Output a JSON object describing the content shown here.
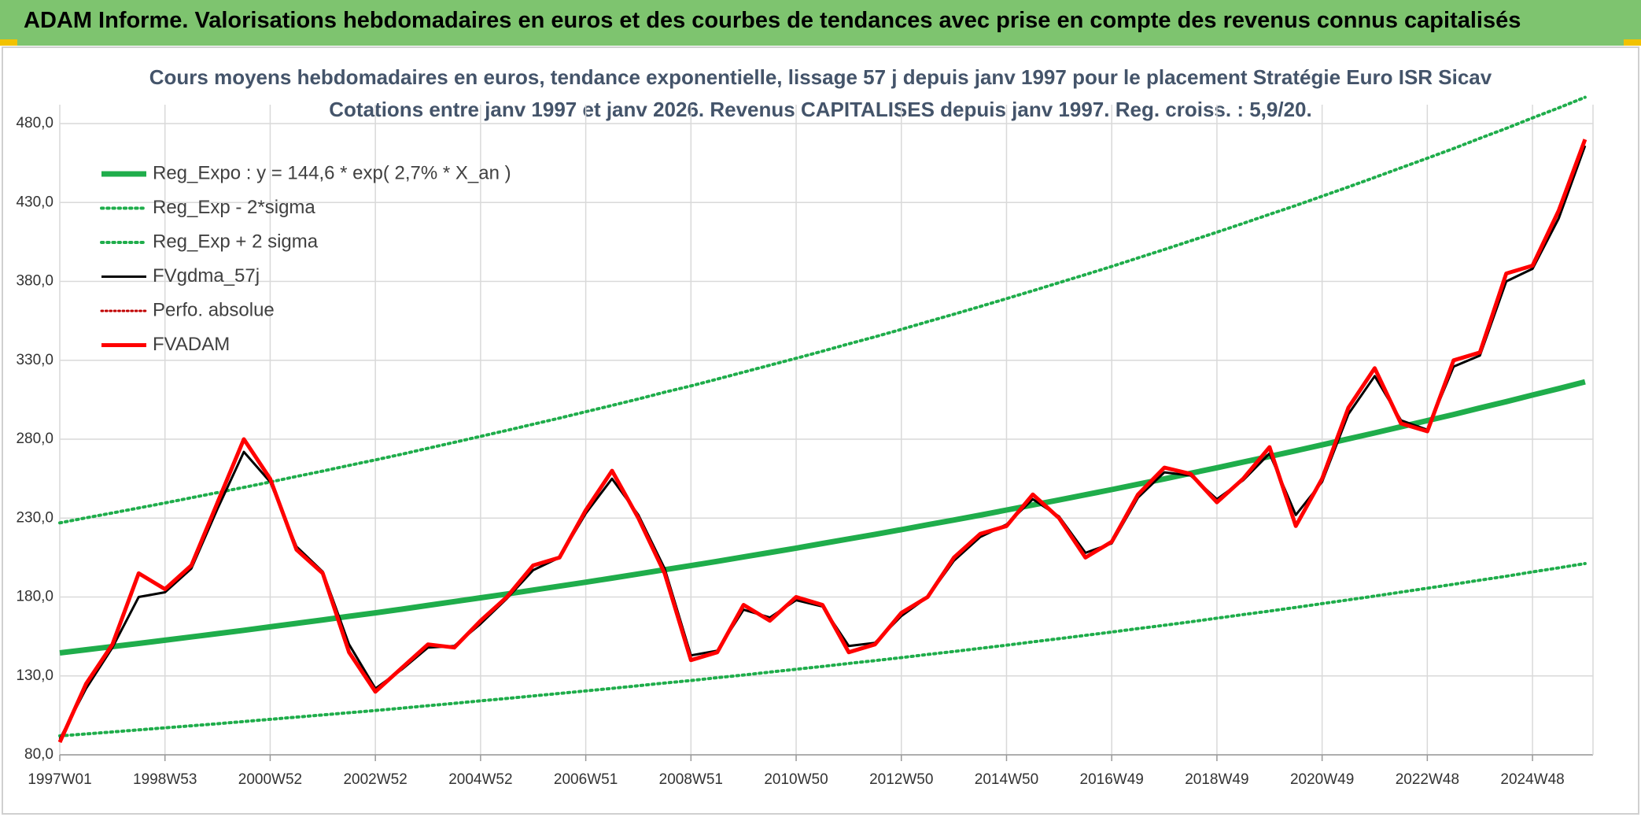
{
  "header": {
    "title": "ADAM Informe. Valorisations hebdomadaires en euros et des courbes de tendances avec prise en compte des revenus connus capitalisés"
  },
  "chart_data": {
    "type": "line",
    "title": "Cours moyens hebdomadaires en euros, tendance exponentielle, lissage 57 j depuis janv 1997 pour le placement Stratégie Euro ISR Sicav",
    "subtitle": "Cotations entre janv 1997 et janv 2026. Revenus CAPITALISES depuis janv 1997. Reg. croiss. : 5,9/20.",
    "categories": [
      "1997W01",
      null,
      null,
      null,
      "1998W53",
      null,
      null,
      null,
      "2000W52",
      null,
      null,
      null,
      "2002W52",
      null,
      null,
      null,
      "2004W52",
      null,
      null,
      null,
      "2006W51",
      null,
      null,
      null,
      "2008W51",
      null,
      null,
      null,
      "2010W50",
      null,
      null,
      null,
      "2012W50",
      null,
      null,
      null,
      "2014W50",
      null,
      null,
      null,
      "2016W49",
      null,
      null,
      null,
      "2018W49",
      null,
      null,
      null,
      "2020W49",
      null,
      null,
      null,
      "2022W48",
      null,
      null,
      null,
      "2024W48",
      null,
      null
    ],
    "ylim": [
      80,
      492
    ],
    "yticks": [
      {
        "value": 80,
        "label": "80,0"
      },
      {
        "value": 130,
        "label": "130,0"
      },
      {
        "value": 180,
        "label": "180,0"
      },
      {
        "value": 230,
        "label": "230,0"
      },
      {
        "value": 280,
        "label": "280,0"
      },
      {
        "value": 330,
        "label": "330,0"
      },
      {
        "value": 380,
        "label": "380,0"
      },
      {
        "value": 430,
        "label": "430,0"
      },
      {
        "value": 480,
        "label": "480,0"
      }
    ],
    "grid": true,
    "legend": "upper left",
    "series": [
      {
        "name": "Reg_Expo : y = 144,6 * exp( 2,7% *  X_an )",
        "color": "#1fad4b",
        "style": "solid",
        "width": 7,
        "values": [
          144.6,
          146.6,
          148.6,
          150.6,
          152.6,
          154.7,
          156.8,
          158.9,
          161.1,
          163.3,
          165.5,
          167.8,
          170.0,
          172.3,
          174.7,
          177.1,
          179.5,
          181.9,
          184.4,
          186.9,
          189.4,
          192.0,
          194.6,
          197.3,
          199.9,
          202.6,
          205.4,
          208.2,
          211.0,
          213.9,
          216.8,
          219.7,
          222.7,
          225.8,
          228.8,
          231.9,
          235.1,
          238.3,
          241.5,
          244.8,
          248.1,
          251.5,
          254.9,
          258.4,
          261.9,
          265.5,
          269.1,
          272.7,
          276.4,
          280.2,
          284.0,
          287.9,
          291.8,
          295.7,
          299.8,
          303.8,
          308.0,
          312.1,
          316.4
        ]
      },
      {
        "name": "Reg_Exp - 2*sigma",
        "color": "#1fad4b",
        "style": "dotted",
        "width": 4,
        "values": [
          92.0,
          93.2,
          94.5,
          95.8,
          97.1,
          98.4,
          99.7,
          101.1,
          102.5,
          103.9,
          105.3,
          106.7,
          108.1,
          109.6,
          111.1,
          112.6,
          114.2,
          115.7,
          117.3,
          118.9,
          120.5,
          122.1,
          123.8,
          125.5,
          127.1,
          128.9,
          130.6,
          132.4,
          134.2,
          136.0,
          137.9,
          139.7,
          141.6,
          143.6,
          145.5,
          147.5,
          149.5,
          151.6,
          153.6,
          155.7,
          157.8,
          160.0,
          162.1,
          164.3,
          166.6,
          168.9,
          171.1,
          173.4,
          175.8,
          178.2,
          180.6,
          183.1,
          185.6,
          188.1,
          190.7,
          193.2,
          195.9,
          198.5,
          201.2
        ]
      },
      {
        "name": "Reg_Exp + 2 sigma",
        "color": "#1fad4b",
        "style": "dotted",
        "width": 4,
        "values": [
          227.0,
          230.2,
          233.3,
          236.4,
          239.6,
          242.9,
          246.2,
          249.5,
          252.9,
          256.4,
          259.8,
          263.4,
          266.9,
          270.5,
          274.3,
          278.0,
          281.8,
          285.6,
          289.5,
          293.4,
          297.4,
          301.4,
          305.5,
          309.8,
          313.8,
          318.1,
          322.5,
          326.9,
          331.3,
          335.8,
          340.4,
          344.9,
          349.6,
          354.5,
          359.2,
          364.1,
          369.1,
          374.1,
          379.2,
          384.3,
          389.5,
          394.9,
          400.2,
          405.7,
          411.2,
          416.8,
          422.5,
          428.1,
          434.0,
          439.9,
          445.9,
          452.0,
          458.1,
          464.2,
          470.7,
          477.0,
          483.6,
          490.0,
          496.7
        ]
      },
      {
        "name": "FVgdma_57j",
        "color": "#000000",
        "style": "solid",
        "width": 3,
        "values": [
          90,
          122,
          148,
          180,
          183,
          198,
          236,
          272,
          253,
          212,
          196,
          150,
          122,
          134,
          148,
          149,
          163,
          179,
          197,
          205,
          233,
          255,
          232,
          198,
          143,
          146,
          172,
          167,
          178,
          174,
          149,
          151,
          168,
          180,
          203,
          218,
          226,
          242,
          231,
          208,
          214,
          243,
          259,
          257,
          242,
          254,
          271,
          232,
          253,
          296,
          320,
          292,
          286,
          326,
          333,
          380,
          388,
          420,
          466
        ]
      },
      {
        "name": "Perfo. absolue",
        "color": "#c00000",
        "style": "dotted",
        "width": 3,
        "values": [
          null,
          null,
          null,
          null,
          null,
          null,
          null,
          null,
          null,
          null,
          null,
          null,
          null,
          null,
          null,
          null,
          null,
          null,
          null,
          null,
          null,
          null,
          null,
          null,
          null,
          null,
          null,
          null,
          null,
          null,
          null,
          null,
          null,
          null,
          null,
          null,
          null,
          null,
          null,
          null,
          null,
          null,
          null,
          null,
          null,
          null,
          null,
          null,
          null,
          null,
          null,
          null,
          null,
          null,
          null,
          null,
          null,
          null,
          null
        ]
      },
      {
        "name": "FVADAM",
        "color": "#ff0000",
        "style": "solid",
        "width": 5,
        "values": [
          88,
          125,
          150,
          195,
          185,
          200,
          240,
          280,
          255,
          210,
          195,
          145,
          120,
          135,
          150,
          148,
          165,
          180,
          200,
          205,
          235,
          260,
          230,
          195,
          140,
          145,
          175,
          165,
          180,
          175,
          145,
          150,
          170,
          180,
          205,
          220,
          225,
          245,
          230,
          205,
          215,
          245,
          262,
          258,
          240,
          255,
          275,
          225,
          255,
          300,
          325,
          290,
          285,
          330,
          335,
          385,
          390,
          425,
          470
        ]
      }
    ]
  }
}
